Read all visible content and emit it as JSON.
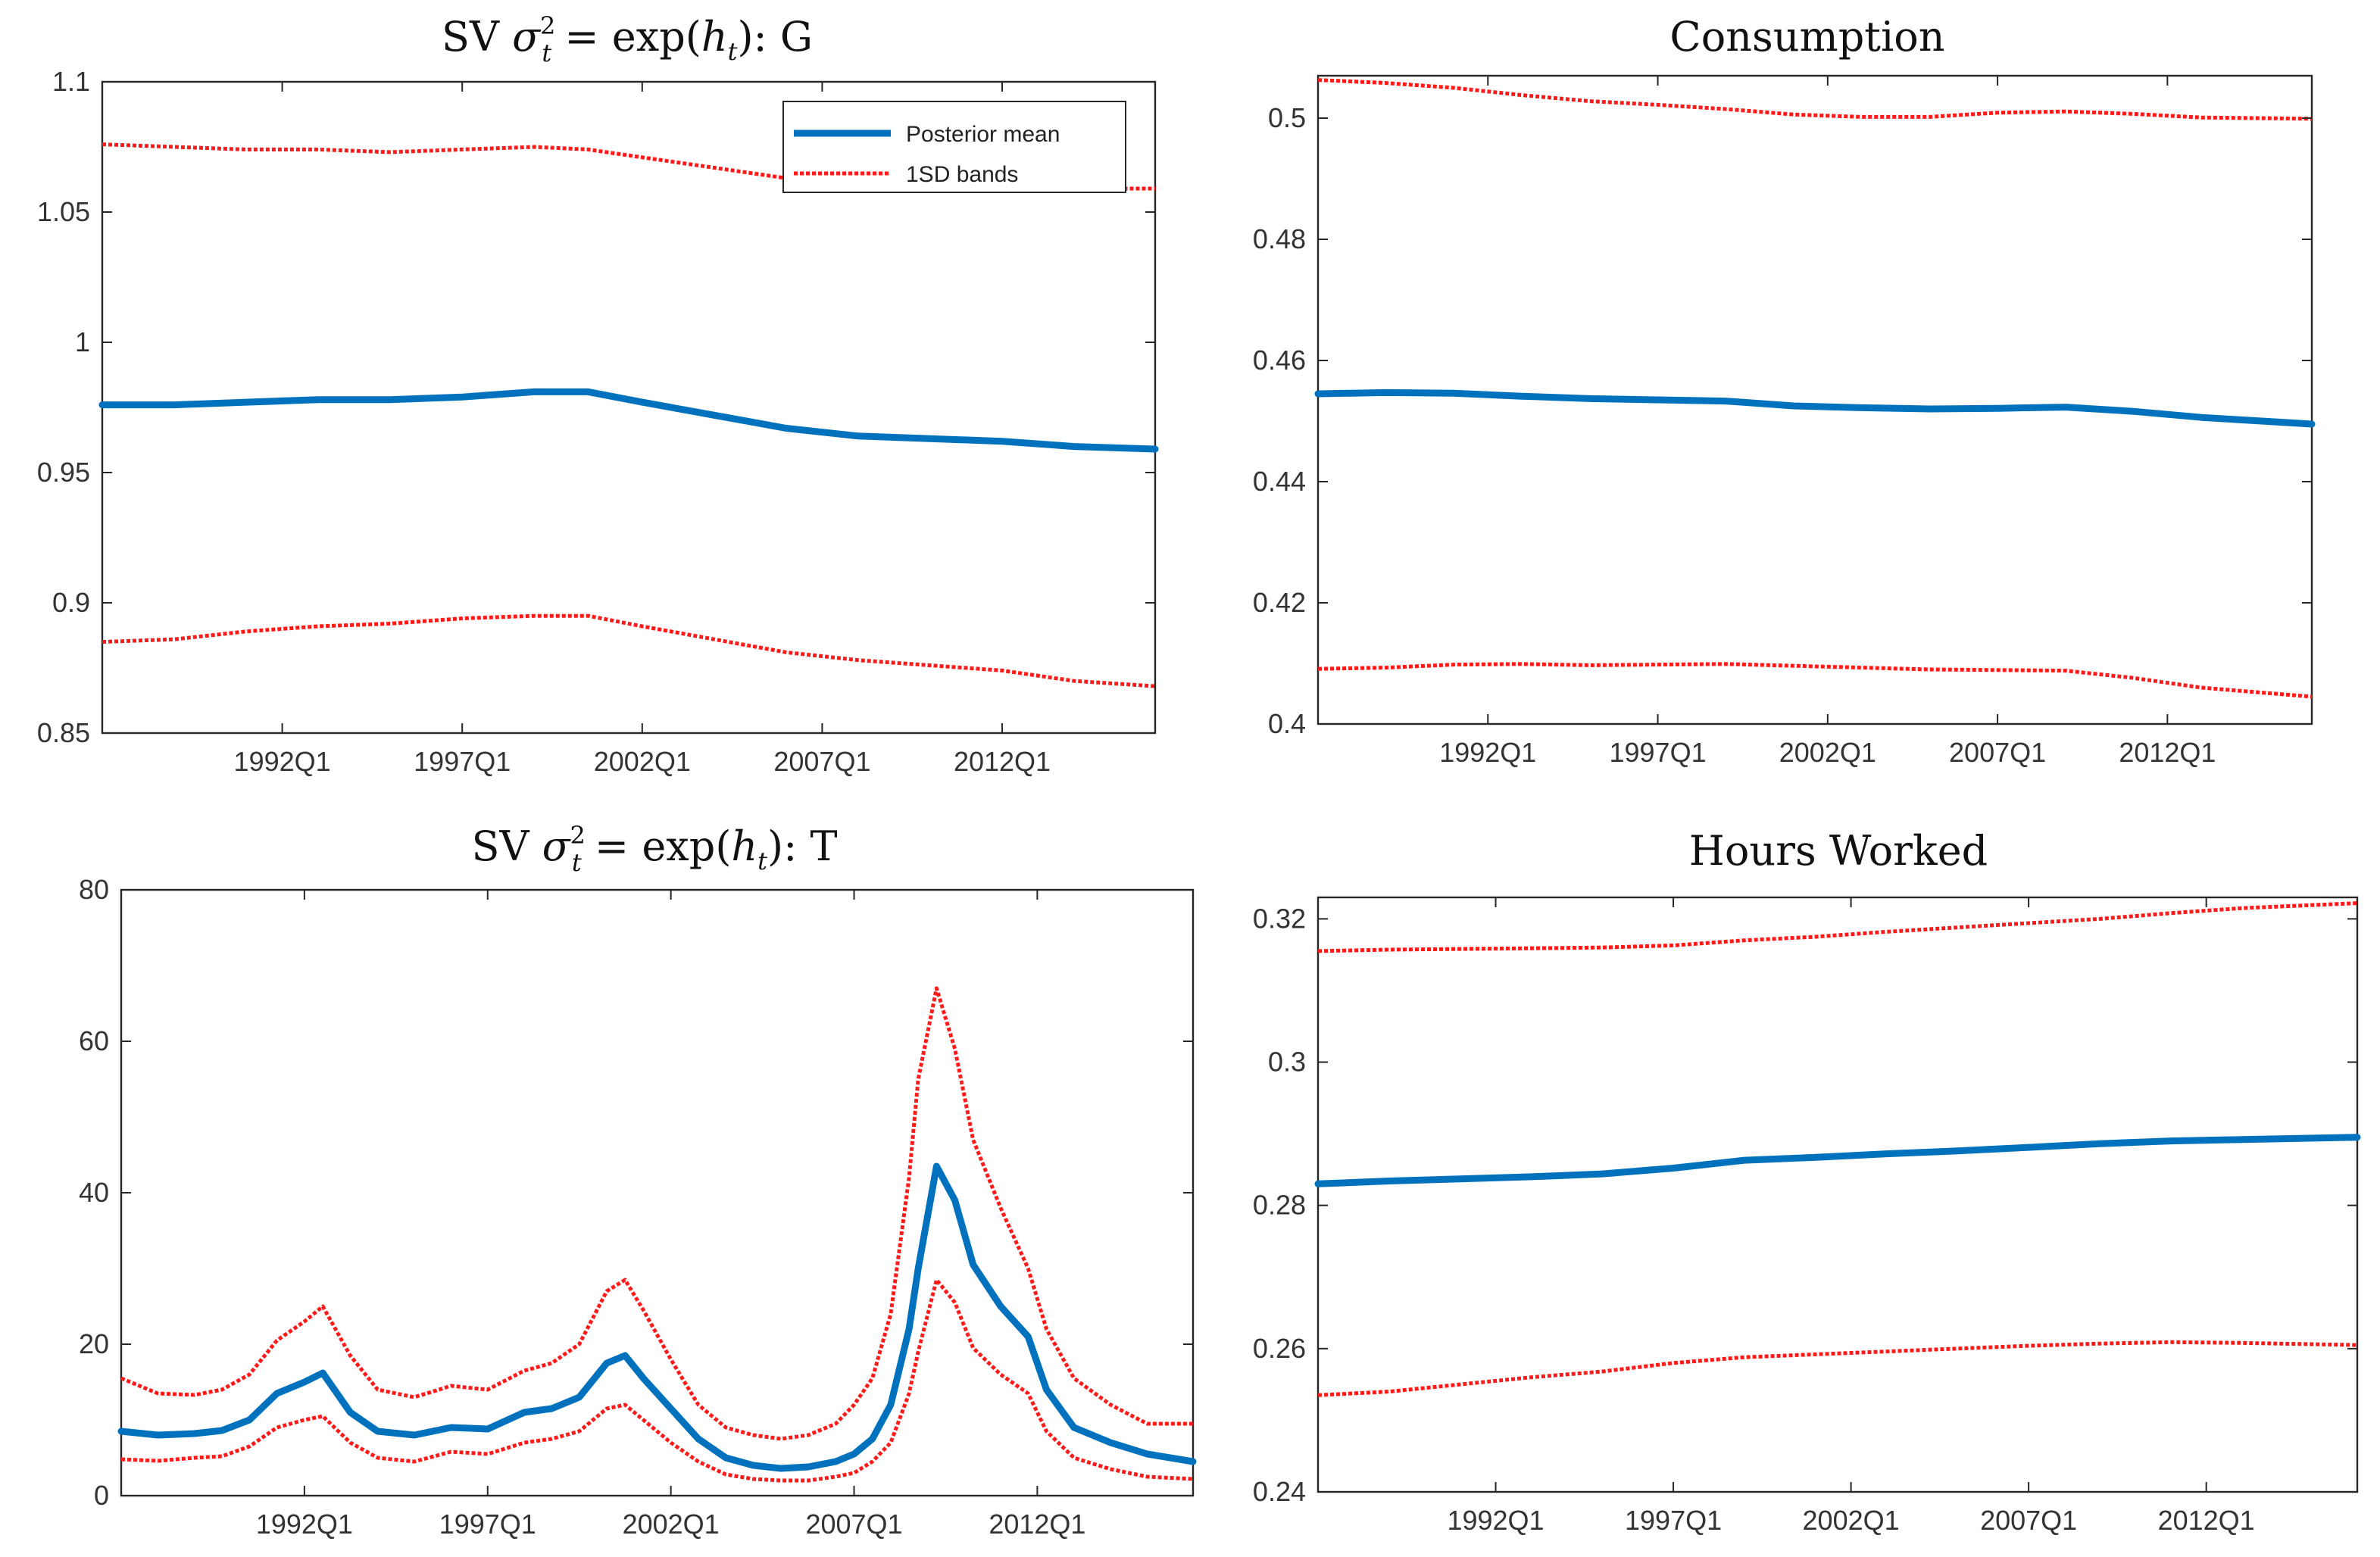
{
  "chart_data": [
    {
      "type": "line",
      "title": "SV σ_t^2 = exp(h_t): G",
      "title_parts": {
        "lead": "SV ",
        "sigma": "σ",
        "sub_t": "t",
        "sup_2": "2",
        "mid": " = exp(",
        "h": "h",
        "sub_h": "t",
        "tail": "): G"
      },
      "xlabel": "",
      "ylabel": "",
      "xlim": [
        1987.0,
        2016.25
      ],
      "ylim": [
        0.85,
        1.1
      ],
      "yticks": [
        0.85,
        0.9,
        0.95,
        1.0,
        1.05,
        1.1
      ],
      "ytick_labels": [
        "0.85",
        "0.9",
        "0.95",
        "1",
        "1.05",
        "1.1"
      ],
      "xticks": [
        1992.0,
        1997.0,
        2002.0,
        2007.0,
        2012.0
      ],
      "xtick_labels": [
        "1992Q1",
        "1997Q1",
        "2002Q1",
        "2007Q1",
        "2012Q1"
      ],
      "legend": {
        "position": "top-right",
        "entries": [
          "Posterior mean",
          "1SD bands"
        ]
      },
      "series": [
        {
          "name": "Posterior mean",
          "color": "#0072bd",
          "x": [
            1987.0,
            1989.0,
            1991.0,
            1993.0,
            1995.0,
            1997.0,
            1999.0,
            2000.5,
            2002.0,
            2004.0,
            2006.0,
            2008.0,
            2010.0,
            2012.0,
            2014.0,
            2016.25
          ],
          "y": [
            0.976,
            0.976,
            0.977,
            0.978,
            0.978,
            0.979,
            0.981,
            0.981,
            0.977,
            0.972,
            0.967,
            0.964,
            0.963,
            0.962,
            0.96,
            0.959
          ]
        },
        {
          "name": "1SD bands (upper)",
          "color": "#ff1a1a",
          "x": [
            1987.0,
            1989.0,
            1991.0,
            1993.0,
            1995.0,
            1997.0,
            1999.0,
            2000.5,
            2002.0,
            2004.0,
            2006.0,
            2008.0,
            2010.0,
            2012.0,
            2014.0,
            2016.25
          ],
          "y": [
            1.076,
            1.075,
            1.074,
            1.074,
            1.073,
            1.074,
            1.075,
            1.074,
            1.071,
            1.067,
            1.063,
            1.061,
            1.06,
            1.06,
            1.059,
            1.059
          ]
        },
        {
          "name": "1SD bands (lower)",
          "color": "#ff1a1a",
          "x": [
            1987.0,
            1989.0,
            1991.0,
            1993.0,
            1995.0,
            1997.0,
            1999.0,
            2000.5,
            2002.0,
            2004.0,
            2006.0,
            2008.0,
            2010.0,
            2012.0,
            2014.0,
            2016.25
          ],
          "y": [
            0.885,
            0.886,
            0.889,
            0.891,
            0.892,
            0.894,
            0.895,
            0.895,
            0.891,
            0.886,
            0.881,
            0.878,
            0.876,
            0.874,
            0.87,
            0.868
          ]
        }
      ]
    },
    {
      "type": "line",
      "title": "Consumption",
      "xlabel": "",
      "ylabel": "",
      "xlim": [
        1987.0,
        2016.25
      ],
      "ylim": [
        0.4,
        0.507
      ],
      "yticks": [
        0.4,
        0.42,
        0.44,
        0.46,
        0.48,
        0.5
      ],
      "ytick_labels": [
        "0.4",
        "0.42",
        "0.44",
        "0.46",
        "0.48",
        "0.5"
      ],
      "xticks": [
        1992.0,
        1997.0,
        2002.0,
        2007.0,
        2012.0
      ],
      "xtick_labels": [
        "1992Q1",
        "1997Q1",
        "2002Q1",
        "2007Q1",
        "2012Q1"
      ],
      "series": [
        {
          "name": "Posterior mean",
          "color": "#0072bd",
          "x": [
            1987.0,
            1989.0,
            1991.0,
            1993.0,
            1995.0,
            1997.0,
            1999.0,
            2001.0,
            2003.0,
            2005.0,
            2007.0,
            2009.0,
            2011.0,
            2013.0,
            2016.25
          ],
          "y": [
            0.4545,
            0.4547,
            0.4546,
            0.4541,
            0.4537,
            0.4535,
            0.4533,
            0.4525,
            0.4522,
            0.452,
            0.4521,
            0.4523,
            0.4516,
            0.4506,
            0.4495
          ]
        },
        {
          "name": "1SD bands (upper)",
          "color": "#ff1a1a",
          "x": [
            1987.0,
            1989.0,
            1991.0,
            1993.0,
            1995.0,
            1997.0,
            1999.0,
            2001.0,
            2003.0,
            2005.0,
            2007.0,
            2009.0,
            2011.0,
            2013.0,
            2016.25
          ],
          "y": [
            0.5063,
            0.5058,
            0.505,
            0.5038,
            0.5028,
            0.5022,
            0.5015,
            0.5006,
            0.5002,
            0.5002,
            0.5009,
            0.5011,
            0.5007,
            0.5001,
            0.4999
          ]
        },
        {
          "name": "1SD bands (lower)",
          "color": "#ff1a1a",
          "x": [
            1987.0,
            1989.0,
            1991.0,
            1993.0,
            1995.0,
            1997.0,
            1999.0,
            2001.0,
            2003.0,
            2005.0,
            2007.0,
            2009.0,
            2011.0,
            2013.0,
            2016.25
          ],
          "y": [
            0.4091,
            0.4093,
            0.4098,
            0.4099,
            0.4097,
            0.4098,
            0.4099,
            0.4096,
            0.4093,
            0.409,
            0.4089,
            0.4088,
            0.4076,
            0.406,
            0.4045
          ]
        }
      ]
    },
    {
      "type": "line",
      "title": "SV σ_t^2 = exp(h_t): T",
      "title_parts": {
        "lead": "SV ",
        "sigma": "σ",
        "sub_t": "t",
        "sup_2": "2",
        "mid": " = exp(",
        "h": "h",
        "sub_h": "t",
        "tail": "): T"
      },
      "xlabel": "",
      "ylabel": "",
      "xlim": [
        1987.0,
        2016.25
      ],
      "ylim": [
        0,
        80
      ],
      "yticks": [
        0,
        20,
        40,
        60,
        80
      ],
      "ytick_labels": [
        "0",
        "20",
        "40",
        "60",
        "80"
      ],
      "xticks": [
        1992.0,
        1997.0,
        2002.0,
        2007.0,
        2012.0
      ],
      "xtick_labels": [
        "1992Q1",
        "1997Q1",
        "2002Q1",
        "2007Q1",
        "2012Q1"
      ],
      "series": [
        {
          "name": "Posterior mean",
          "color": "#0072bd",
          "x": [
            1987.0,
            1988.0,
            1989.0,
            1989.75,
            1990.5,
            1991.25,
            1992.0,
            1992.5,
            1993.25,
            1994.0,
            1995.0,
            1996.0,
            1997.0,
            1998.0,
            1998.75,
            1999.5,
            2000.25,
            2000.75,
            2001.25,
            2002.0,
            2002.75,
            2003.5,
            2004.25,
            2005.0,
            2005.75,
            2006.5,
            2007.0,
            2007.5,
            2008.0,
            2008.5,
            2008.75,
            2009.25,
            2009.75,
            2010.25,
            2011.0,
            2011.75,
            2012.25,
            2013.0,
            2014.0,
            2015.0,
            2016.25
          ],
          "y": [
            8.5,
            8.0,
            8.2,
            8.6,
            10.0,
            13.5,
            15.0,
            16.2,
            11.0,
            8.5,
            8.0,
            9.0,
            8.8,
            11.0,
            11.5,
            13.0,
            17.5,
            18.5,
            15.5,
            11.5,
            7.5,
            5.0,
            4.0,
            3.6,
            3.8,
            4.5,
            5.5,
            7.5,
            12.0,
            22.0,
            30.0,
            43.5,
            39.0,
            30.5,
            25.0,
            21.0,
            14.0,
            9.0,
            7.0,
            5.5,
            4.5
          ]
        },
        {
          "name": "1SD bands (upper)",
          "color": "#ff1a1a",
          "x": [
            1987.0,
            1988.0,
            1989.0,
            1989.75,
            1990.5,
            1991.25,
            1992.0,
            1992.5,
            1993.25,
            1994.0,
            1995.0,
            1996.0,
            1997.0,
            1998.0,
            1998.75,
            1999.5,
            2000.25,
            2000.75,
            2001.25,
            2002.0,
            2002.75,
            2003.5,
            2004.25,
            2005.0,
            2005.75,
            2006.5,
            2007.0,
            2007.5,
            2008.0,
            2008.5,
            2008.75,
            2009.25,
            2009.75,
            2010.25,
            2011.0,
            2011.75,
            2012.25,
            2013.0,
            2014.0,
            2015.0,
            2016.25
          ],
          "y": [
            15.5,
            13.5,
            13.3,
            14.0,
            16.0,
            20.5,
            23.0,
            25.0,
            18.5,
            14.0,
            13.0,
            14.5,
            14.0,
            16.5,
            17.5,
            20.0,
            27.0,
            28.5,
            24.5,
            18.0,
            12.0,
            9.0,
            8.0,
            7.5,
            8.0,
            9.5,
            12.0,
            15.5,
            24.0,
            42.0,
            55.0,
            67.0,
            59.0,
            47.0,
            38.0,
            30.0,
            22.0,
            15.5,
            12.0,
            9.5,
            9.5
          ]
        },
        {
          "name": "1SD bands (lower)",
          "color": "#ff1a1a",
          "x": [
            1987.0,
            1988.0,
            1989.0,
            1989.75,
            1990.5,
            1991.25,
            1992.0,
            1992.5,
            1993.25,
            1994.0,
            1995.0,
            1996.0,
            1997.0,
            1998.0,
            1998.75,
            1999.5,
            2000.25,
            2000.75,
            2001.25,
            2002.0,
            2002.75,
            2003.5,
            2004.25,
            2005.0,
            2005.75,
            2006.5,
            2007.0,
            2007.5,
            2008.0,
            2008.5,
            2008.75,
            2009.25,
            2009.75,
            2010.25,
            2011.0,
            2011.75,
            2012.25,
            2013.0,
            2014.0,
            2015.0,
            2016.25
          ],
          "y": [
            4.8,
            4.6,
            5.0,
            5.2,
            6.5,
            9.0,
            10.0,
            10.5,
            7.0,
            5.0,
            4.5,
            5.8,
            5.5,
            7.0,
            7.5,
            8.5,
            11.5,
            12.0,
            10.0,
            7.0,
            4.5,
            2.8,
            2.2,
            2.0,
            2.0,
            2.5,
            3.0,
            4.5,
            7.0,
            13.5,
            19.0,
            28.5,
            25.5,
            19.5,
            16.0,
            13.5,
            8.5,
            5.0,
            3.5,
            2.5,
            2.2
          ]
        }
      ]
    },
    {
      "type": "line",
      "title": "Hours Worked",
      "xlabel": "",
      "ylabel": "",
      "xlim": [
        1987.0,
        2016.25
      ],
      "ylim": [
        0.24,
        0.323
      ],
      "yticks": [
        0.24,
        0.26,
        0.28,
        0.3,
        0.32
      ],
      "ytick_labels": [
        "0.24",
        "0.26",
        "0.28",
        "0.3",
        "0.32"
      ],
      "xticks": [
        1992.0,
        1997.0,
        2002.0,
        2007.0,
        2012.0
      ],
      "xtick_labels": [
        "1992Q1",
        "1997Q1",
        "2002Q1",
        "2007Q1",
        "2012Q1"
      ],
      "series": [
        {
          "name": "Posterior mean",
          "color": "#0072bd",
          "x": [
            1987.0,
            1989.0,
            1991.0,
            1993.0,
            1995.0,
            1997.0,
            1999.0,
            2001.0,
            2003.0,
            2005.0,
            2007.0,
            2009.0,
            2011.0,
            2013.0,
            2016.25
          ],
          "y": [
            0.283,
            0.2834,
            0.2837,
            0.284,
            0.2844,
            0.2852,
            0.2863,
            0.2867,
            0.2872,
            0.2876,
            0.2881,
            0.2886,
            0.289,
            0.2892,
            0.2895
          ]
        },
        {
          "name": "1SD bands (upper)",
          "color": "#ff1a1a",
          "x": [
            1987.0,
            1989.0,
            1991.0,
            1993.0,
            1995.0,
            1997.0,
            1999.0,
            2001.0,
            2003.0,
            2005.0,
            2007.0,
            2009.0,
            2011.0,
            2013.0,
            2016.25
          ],
          "y": [
            0.3155,
            0.3157,
            0.3158,
            0.3159,
            0.316,
            0.3163,
            0.317,
            0.3175,
            0.3182,
            0.3188,
            0.3194,
            0.32,
            0.3208,
            0.3215,
            0.3222
          ]
        },
        {
          "name": "1SD bands (lower)",
          "color": "#ff1a1a",
          "x": [
            1987.0,
            1989.0,
            1991.0,
            1993.0,
            1995.0,
            1997.0,
            1999.0,
            2001.0,
            2003.0,
            2005.0,
            2007.0,
            2009.0,
            2011.0,
            2013.0,
            2016.25
          ],
          "y": [
            0.2535,
            0.254,
            0.255,
            0.256,
            0.2568,
            0.258,
            0.2588,
            0.2592,
            0.2596,
            0.26,
            0.2604,
            0.2607,
            0.2609,
            0.2608,
            0.2605
          ]
        }
      ]
    }
  ]
}
